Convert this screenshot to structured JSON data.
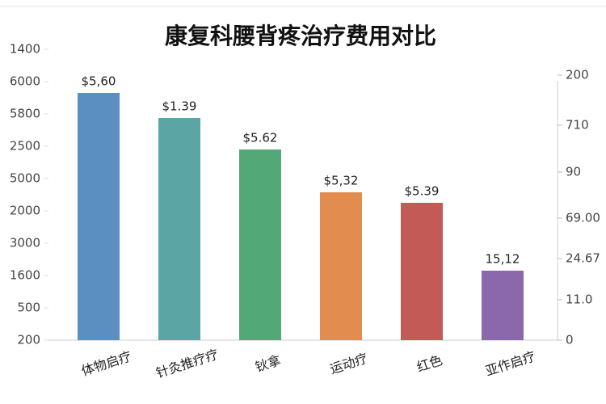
{
  "chart_data": {
    "type": "bar",
    "title": "康复科腰背疼治疗费用对比",
    "categories": [
      "体物启疗",
      "针灸推疗疗",
      "钬拿",
      "运动疗",
      "红色",
      "亚作启疗"
    ],
    "values": [
      7.65,
      6.875,
      5.9,
      4.575,
      4.25,
      2.15
    ],
    "annotations": [
      "$5,60",
      "$1.39",
      "$5.62",
      "$5,32",
      "$5.39",
      "15,12"
    ],
    "colors": [
      "#5b8fc2",
      "#5ba6a4",
      "#52a876",
      "#e38c50",
      "#c45a56",
      "#8a68ab"
    ],
    "ylim": [
      0,
      9
    ],
    "yticks": [
      {
        "value": 0,
        "label": "200"
      },
      {
        "value": 1,
        "label": "500"
      },
      {
        "value": 2,
        "label": "1600"
      },
      {
        "value": 3,
        "label": "3000"
      },
      {
        "value": 4,
        "label": "2000"
      },
      {
        "value": 5,
        "label": "5000"
      },
      {
        "value": 6,
        "label": "2500"
      },
      {
        "value": 7,
        "label": "5800"
      },
      {
        "value": 8,
        "label": "6000"
      },
      {
        "value": 9,
        "label": "1400"
      }
    ],
    "y2lim": [
      0,
      9
    ],
    "y2ticks": [
      0,
      {
        "value": 1.25,
        "label": "11.0"
      },
      {
        "value": 2.525,
        "label": "24.67"
      },
      {
        "value": 3.775,
        "label": "69.00"
      },
      {
        "value": 5.2,
        "label": "90"
      },
      {
        "value": 6.65,
        "label": "710"
      },
      {
        "value": 8.2,
        "label": "200"
      }
    ]
  }
}
